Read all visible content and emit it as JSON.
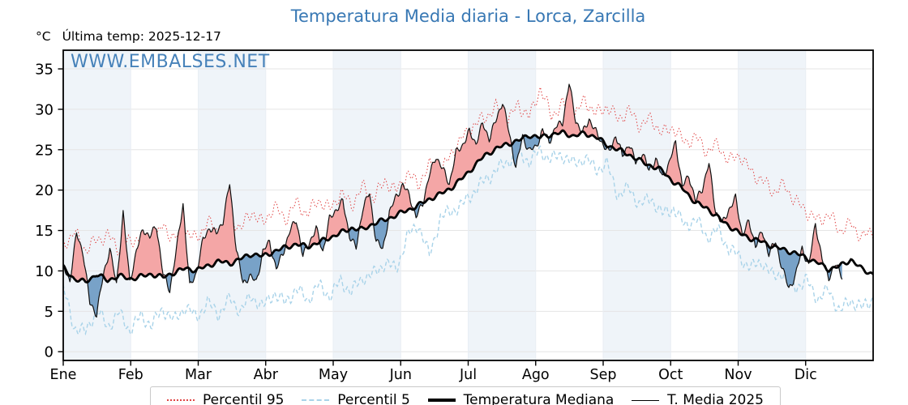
{
  "header": {
    "title": "Temperatura Media diaria - Lorca, Zarcilla",
    "unit_label": "°C",
    "last_temp_label": "Última temp: 2025-12-17",
    "watermark": "WWW.EMBALSES.NET"
  },
  "colors": {
    "title": "#3878b4",
    "watermark": "#3878b4",
    "p95": "#e04545",
    "p5": "#a9d3e9",
    "median": "#000000",
    "t2025": "#111111",
    "fill_above": "#f4a6a6",
    "fill_below": "#78a2c8",
    "band": "#eff4f9",
    "grid": "#e5e5e5",
    "vgrid": "#e9eef4",
    "spine": "#000000"
  },
  "chart_data": {
    "type": "line",
    "title": "Temperatura Media diaria - Lorca, Zarcilla",
    "ylabel_unit": "°C",
    "x_tick_labels": [
      "Ene",
      "Feb",
      "Mar",
      "Abr",
      "May",
      "Jun",
      "Jul",
      "Ago",
      "Sep",
      "Oct",
      "Nov",
      "Dic"
    ],
    "y_ticks": [
      0,
      5,
      10,
      15,
      20,
      25,
      30,
      35
    ],
    "ylim": [
      -1.1,
      37.3
    ],
    "grid": true,
    "legend_position": "bottom",
    "series": [
      {
        "name": "Percentil 95",
        "style": "dotted",
        "color_key": "p95",
        "day_start": 1,
        "day_step": 5,
        "values": [
          13.2,
          14.8,
          12.6,
          13.8,
          14.4,
          12.8,
          13.6,
          14.2,
          13.0,
          15.6,
          14.0,
          15.0,
          13.8,
          16.2,
          14.6,
          16.8,
          15.2,
          17.4,
          15.8,
          18.0,
          16.4,
          18.4,
          17.0,
          18.8,
          17.6,
          19.6,
          18.2,
          20.4,
          19.0,
          21.2,
          19.8,
          22.0,
          20.8,
          23.0,
          22.0,
          24.6,
          26.5,
          28.0,
          29.0,
          30.2,
          28.4,
          30.6,
          29.0,
          32.6,
          29.2,
          30.6,
          29.0,
          31.2,
          29.4,
          30.4,
          28.8,
          29.8,
          28.0,
          28.8,
          27.0,
          27.8,
          25.8,
          26.6,
          24.8,
          25.6,
          23.6,
          24.4,
          22.2,
          21.2,
          19.8,
          20.6,
          18.6,
          17.4,
          16.2,
          17.0,
          15.0,
          15.8,
          14.2,
          14.8
        ]
      },
      {
        "name": "Percentil 5",
        "style": "dashed",
        "color_key": "p5",
        "day_start": 1,
        "day_step": 5,
        "values": [
          7.8,
          3.0,
          2.4,
          5.2,
          3.1,
          4.8,
          2.7,
          4.4,
          3.3,
          5.3,
          3.8,
          5.6,
          4.2,
          6.1,
          4.7,
          6.5,
          5.1,
          6.9,
          5.5,
          7.3,
          6.0,
          7.8,
          6.4,
          8.2,
          6.9,
          8.7,
          7.4,
          9.2,
          9.6,
          11.0,
          10.2,
          14.2,
          15.8,
          11.8,
          16.6,
          17.4,
          18.2,
          19.8,
          21.2,
          22.4,
          23.5,
          24.6,
          23.6,
          24.8,
          23.8,
          24.4,
          23.2,
          24.0,
          22.6,
          23.2,
          19.4,
          20.2,
          18.2,
          19.0,
          17.0,
          17.8,
          15.6,
          16.4,
          14.2,
          15.0,
          12.8,
          11.6,
          10.4,
          11.2,
          9.2,
          10.0,
          8.0,
          8.8,
          6.6,
          7.6,
          5.0,
          6.4,
          5.4,
          6.6
        ]
      },
      {
        "name": "Temperatura Mediana",
        "style": "solid-thick",
        "color_key": "median",
        "day_start": 1,
        "day_step": 5,
        "values": [
          10.4,
          9.0,
          8.6,
          9.6,
          8.8,
          9.4,
          9.0,
          9.3,
          9.6,
          9.2,
          9.8,
          10.3,
          10.1,
          10.6,
          11.2,
          10.9,
          11.5,
          12.1,
          11.8,
          12.4,
          12.9,
          13.3,
          13.0,
          13.5,
          14.1,
          14.7,
          15.3,
          15.1,
          15.9,
          16.3,
          16.9,
          17.5,
          18.1,
          18.9,
          19.5,
          20.3,
          21.5,
          22.9,
          24.3,
          25.1,
          25.7,
          26.1,
          26.8,
          26.5,
          26.9,
          27.1,
          26.7,
          27.0,
          26.6,
          25.6,
          25.0,
          24.4,
          23.6,
          23.0,
          22.4,
          21.0,
          20.0,
          18.4,
          17.8,
          16.6,
          15.6,
          14.6,
          14.0,
          13.6,
          13.0,
          12.6,
          12.2,
          11.6,
          11.0,
          10.2,
          10.6,
          11.4,
          10.2,
          9.6
        ]
      },
      {
        "name": "T. Media 2025",
        "style": "solid-thin",
        "color_key": "t2025",
        "fills_vs": "Temperatura Mediana",
        "fill_above_key": "fill_above",
        "fill_below_key": "fill_below",
        "day_start": 1,
        "day_step": 3,
        "values": [
          10.5,
          8.8,
          14.6,
          12.2,
          6.0,
          4.7,
          9.3,
          12.8,
          8.2,
          17.2,
          8.6,
          12.5,
          15.2,
          14.2,
          15.6,
          9.6,
          7.6,
          12.6,
          18.3,
          8.0,
          9.8,
          13.8,
          15.4,
          14.6,
          16.2,
          20.8,
          12.8,
          8.4,
          9.4,
          8.6,
          12.4,
          13.6,
          10.2,
          12.2,
          14.8,
          16.4,
          11.8,
          13.6,
          15.2,
          12.4,
          16.4,
          17.6,
          18.6,
          14.4,
          12.8,
          17.8,
          19.6,
          13.8,
          12.6,
          17.2,
          19.2,
          20.6,
          19.4,
          16.6,
          18.4,
          21.8,
          24.2,
          22.6,
          20.8,
          24.6,
          25.6,
          27.2,
          25.8,
          28.2,
          26.4,
          28.6,
          31.0,
          27.0,
          22.8,
          26.6,
          24.9,
          25.3,
          27.4,
          26.0,
          27.8,
          28.4,
          33.2,
          28.6,
          27.0,
          28.8,
          27.2,
          25.8,
          24.6,
          26.8,
          24.2,
          25.8,
          23.4,
          24.6,
          22.4,
          23.8,
          21.6,
          23.2,
          26.0,
          20.4,
          21.8,
          18.6,
          20.2,
          23.3,
          17.4,
          15.8,
          17.6,
          19.0,
          14.6,
          16.0,
          13.2,
          14.8,
          12.2,
          13.6,
          10.4,
          7.8,
          9.4,
          12.8,
          10.6,
          15.9,
          11.4,
          9.2,
          10.8,
          9.4
        ]
      }
    ]
  }
}
